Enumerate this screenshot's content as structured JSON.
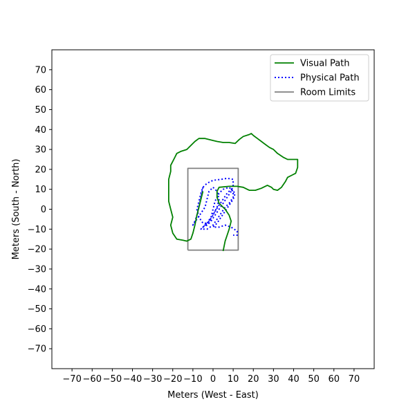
{
  "chart_data": {
    "type": "line",
    "xlabel": "Meters (West - East)",
    "ylabel": "Meters (South - North)",
    "xlim": [
      -80,
      80
    ],
    "ylim": [
      -80,
      80
    ],
    "xticks": [
      -70,
      -60,
      -50,
      -40,
      -30,
      -20,
      -10,
      0,
      10,
      20,
      30,
      40,
      50,
      60,
      70
    ],
    "yticks": [
      -70,
      -60,
      -50,
      -40,
      -30,
      -20,
      -10,
      0,
      10,
      20,
      30,
      40,
      50,
      60,
      70
    ],
    "xtick_labels": [
      "−70",
      "−60",
      "−50",
      "−40",
      "−30",
      "−20",
      "−10",
      "0",
      "10",
      "20",
      "30",
      "40",
      "50",
      "60",
      "70"
    ],
    "ytick_labels": [
      "−70",
      "−60",
      "−50",
      "−40",
      "−30",
      "−20",
      "−10",
      "0",
      "10",
      "20",
      "30",
      "40",
      "50",
      "60",
      "70"
    ],
    "grid": false,
    "legend_position": "top-right",
    "series": [
      {
        "name": "Visual Path",
        "color": "#008000",
        "style": "solid",
        "points": [
          [
            5,
            -21
          ],
          [
            6,
            -16
          ],
          [
            7,
            -13
          ],
          [
            8,
            -10
          ],
          [
            9,
            -6
          ],
          [
            8,
            -3
          ],
          [
            6,
            0
          ],
          [
            3,
            3
          ],
          [
            2,
            6
          ],
          [
            2,
            9
          ],
          [
            3,
            11
          ],
          [
            8,
            11.5
          ],
          [
            12,
            11.5
          ],
          [
            15,
            11
          ],
          [
            17,
            10
          ],
          [
            18,
            9.5
          ],
          [
            21,
            9.5
          ],
          [
            24,
            10.5
          ],
          [
            27,
            12
          ],
          [
            29,
            11
          ],
          [
            30,
            10
          ],
          [
            32,
            9.5
          ],
          [
            34,
            11
          ],
          [
            36,
            14
          ],
          [
            37,
            16
          ],
          [
            39,
            17
          ],
          [
            41,
            18
          ],
          [
            42,
            21
          ],
          [
            42,
            25
          ],
          [
            40,
            25
          ],
          [
            37,
            25
          ],
          [
            35,
            26
          ],
          [
            32,
            28
          ],
          [
            30,
            30
          ],
          [
            28,
            31
          ],
          [
            26,
            32.5
          ],
          [
            24,
            34
          ],
          [
            22,
            35.5
          ],
          [
            20,
            37
          ],
          [
            19,
            38
          ],
          [
            18,
            37.5
          ],
          [
            15,
            36.5
          ],
          [
            13,
            35
          ],
          [
            11,
            33
          ],
          [
            8,
            33.5
          ],
          [
            5,
            33.5
          ],
          [
            2,
            34
          ],
          [
            0,
            34.5
          ],
          [
            -4,
            35.5
          ],
          [
            -7,
            35.5
          ],
          [
            -9,
            34
          ],
          [
            -11,
            32
          ],
          [
            -13,
            30
          ],
          [
            -16,
            29
          ],
          [
            -18,
            28
          ],
          [
            -19,
            26
          ],
          [
            -20,
            24
          ],
          [
            -21,
            22
          ],
          [
            -21,
            19
          ],
          [
            -22,
            15
          ],
          [
            -22,
            8
          ],
          [
            -22,
            4
          ],
          [
            -21,
            0
          ],
          [
            -20,
            -4
          ],
          [
            -21,
            -8
          ],
          [
            -20,
            -12
          ],
          [
            -18,
            -15
          ],
          [
            -15,
            -15.5
          ],
          [
            -13,
            -16
          ],
          [
            -11,
            -15
          ],
          [
            -10,
            -12
          ],
          [
            -9,
            -8
          ],
          [
            -8,
            -3
          ],
          [
            -7,
            1
          ],
          [
            -6,
            5
          ],
          [
            -5,
            9
          ]
        ]
      },
      {
        "name": "Physical Path",
        "color": "#0000ff",
        "style": "dotted",
        "points": [
          [
            -5,
            11
          ],
          [
            -6,
            6
          ],
          [
            -7,
            1
          ],
          [
            -8,
            -3
          ],
          [
            -9,
            -6
          ],
          [
            -10,
            -8
          ],
          [
            -8,
            -5
          ],
          [
            -6,
            -2
          ],
          [
            -4,
            1
          ],
          [
            -3,
            5
          ],
          [
            -2,
            9
          ],
          [
            0,
            11
          ],
          [
            2,
            9
          ],
          [
            3,
            5
          ],
          [
            2,
            1
          ],
          [
            0,
            -3
          ],
          [
            -2,
            -6
          ],
          [
            -4,
            -8
          ],
          [
            -6,
            -10
          ],
          [
            -3,
            -10
          ],
          [
            0,
            -8
          ],
          [
            2,
            -5
          ],
          [
            4,
            -2
          ],
          [
            6,
            1
          ],
          [
            8,
            3
          ],
          [
            10,
            6
          ],
          [
            10,
            9
          ],
          [
            8,
            11
          ],
          [
            5,
            10
          ],
          [
            3,
            8
          ],
          [
            1,
            4
          ],
          [
            0,
            0
          ],
          [
            -1,
            -4
          ],
          [
            -2,
            -7
          ],
          [
            -5,
            -7
          ],
          [
            -7,
            -4
          ],
          [
            -8,
            0
          ],
          [
            -7,
            4
          ],
          [
            -6,
            8
          ],
          [
            -5,
            11
          ],
          [
            -3,
            13
          ],
          [
            0,
            14.5
          ],
          [
            4,
            15
          ],
          [
            7,
            15.5
          ],
          [
            10,
            15
          ],
          [
            10,
            12
          ],
          [
            9,
            9
          ],
          [
            7,
            6
          ],
          [
            5,
            3
          ],
          [
            3,
            0
          ],
          [
            1,
            -3
          ],
          [
            -1,
            -6
          ],
          [
            -3,
            -8
          ],
          [
            -5,
            -9
          ],
          [
            -3,
            -7
          ],
          [
            -1,
            -4
          ],
          [
            1,
            -1
          ],
          [
            3,
            2
          ],
          [
            5,
            5
          ],
          [
            7,
            8
          ],
          [
            9,
            10
          ],
          [
            11,
            8
          ],
          [
            10,
            5
          ],
          [
            8,
            2
          ],
          [
            6,
            -1
          ],
          [
            4,
            -4
          ],
          [
            2,
            -7
          ],
          [
            0,
            -9
          ],
          [
            3,
            -9
          ],
          [
            6,
            -8
          ],
          [
            9,
            -9
          ],
          [
            12,
            -11
          ],
          [
            12,
            -13
          ],
          [
            10,
            -13
          ]
        ]
      },
      {
        "name": "Room Limits",
        "color": "#808080",
        "style": "solid",
        "points": [
          [
            -12.5,
            -20.5
          ],
          [
            12.5,
            -20.5
          ],
          [
            12.5,
            20.5
          ],
          [
            -12.5,
            20.5
          ],
          [
            -12.5,
            -20.5
          ]
        ]
      }
    ]
  }
}
